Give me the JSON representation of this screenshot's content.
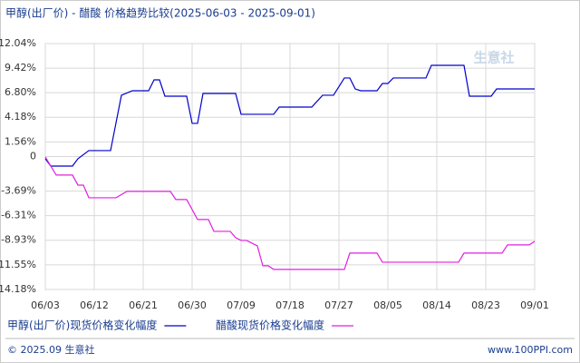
{
  "chart_data": {
    "type": "line",
    "title": "甲醇(出厂价) - 醋酸 价格趋势比较(2025-06-03 - 2025-09-01)",
    "xlim": [
      0,
      90
    ],
    "xticks": [
      {
        "value": 0,
        "label": "06/03"
      },
      {
        "value": 9,
        "label": "06/12"
      },
      {
        "value": 18,
        "label": "06/21"
      },
      {
        "value": 27,
        "label": "06/30"
      },
      {
        "value": 36,
        "label": "07/09"
      },
      {
        "value": 45,
        "label": "07/18"
      },
      {
        "value": 54,
        "label": "07/27"
      },
      {
        "value": 63,
        "label": "08/05"
      },
      {
        "value": 72,
        "label": "08/14"
      },
      {
        "value": 81,
        "label": "08/23"
      },
      {
        "value": 90,
        "label": "09/01"
      }
    ],
    "ylim": [
      -14.18,
      12.04
    ],
    "yticks": [
      {
        "value": 12.04,
        "label": "12.04%"
      },
      {
        "value": 9.42,
        "label": "9.42%"
      },
      {
        "value": 6.8,
        "label": "6.80%"
      },
      {
        "value": 4.18,
        "label": "4.18%"
      },
      {
        "value": 1.56,
        "label": "1.56%"
      },
      0,
      {
        "value": -3.69,
        "label": "-3.69%"
      },
      {
        "value": -6.31,
        "label": "-6.31%"
      },
      {
        "value": -8.93,
        "label": "-8.93%"
      },
      {
        "value": -11.55,
        "label": "-11.55%"
      },
      {
        "value": -14.18,
        "label": "-14.18%"
      }
    ],
    "grid": true,
    "series": [
      {
        "name": "甲醇(出厂价)现货价格变化幅度",
        "color": "#0000cc",
        "x": [
          0,
          1,
          5,
          6,
          8,
          12,
          14,
          16,
          19,
          20,
          21,
          22,
          26,
          27,
          28,
          29,
          35,
          36,
          42,
          43,
          49,
          51,
          53,
          55,
          56,
          57,
          58,
          61,
          62,
          63,
          64,
          70,
          71,
          77,
          78,
          82,
          83,
          90
        ],
        "values": [
          -0.24,
          -1.02,
          -1.02,
          -0.24,
          0.63,
          0.63,
          6.53,
          7.01,
          7.01,
          8.17,
          8.17,
          6.43,
          6.43,
          3.53,
          3.53,
          6.72,
          6.72,
          4.5,
          4.5,
          5.27,
          5.27,
          6.53,
          6.53,
          8.37,
          8.37,
          7.2,
          7.01,
          7.01,
          7.78,
          7.78,
          8.37,
          8.37,
          9.72,
          9.72,
          6.43,
          6.43,
          7.2,
          7.2
        ]
      },
      {
        "name": "醋酸现货价格变化幅度",
        "color": "#e020e0",
        "x": [
          0,
          2,
          5,
          6,
          7,
          8,
          13,
          15,
          23,
          24,
          26,
          28,
          30,
          31,
          34,
          35,
          36,
          37,
          39,
          40,
          41,
          42,
          55,
          56,
          61,
          62,
          76,
          77,
          84,
          85,
          89,
          90
        ],
        "values": [
          -0.05,
          -1.98,
          -1.98,
          -3.05,
          -3.05,
          -4.4,
          -4.4,
          -3.72,
          -3.72,
          -4.59,
          -4.59,
          -6.72,
          -6.72,
          -7.98,
          -7.98,
          -8.66,
          -8.95,
          -8.95,
          -9.53,
          -11.65,
          -11.65,
          -12.04,
          -12.04,
          -10.3,
          -10.3,
          -11.27,
          -11.27,
          -10.3,
          -10.3,
          -9.43,
          -9.43,
          -9.04
        ]
      }
    ],
    "watermark": "生意社",
    "footer_left": "© 2025.09 生意社",
    "footer_right": "www.100PPI.com"
  }
}
